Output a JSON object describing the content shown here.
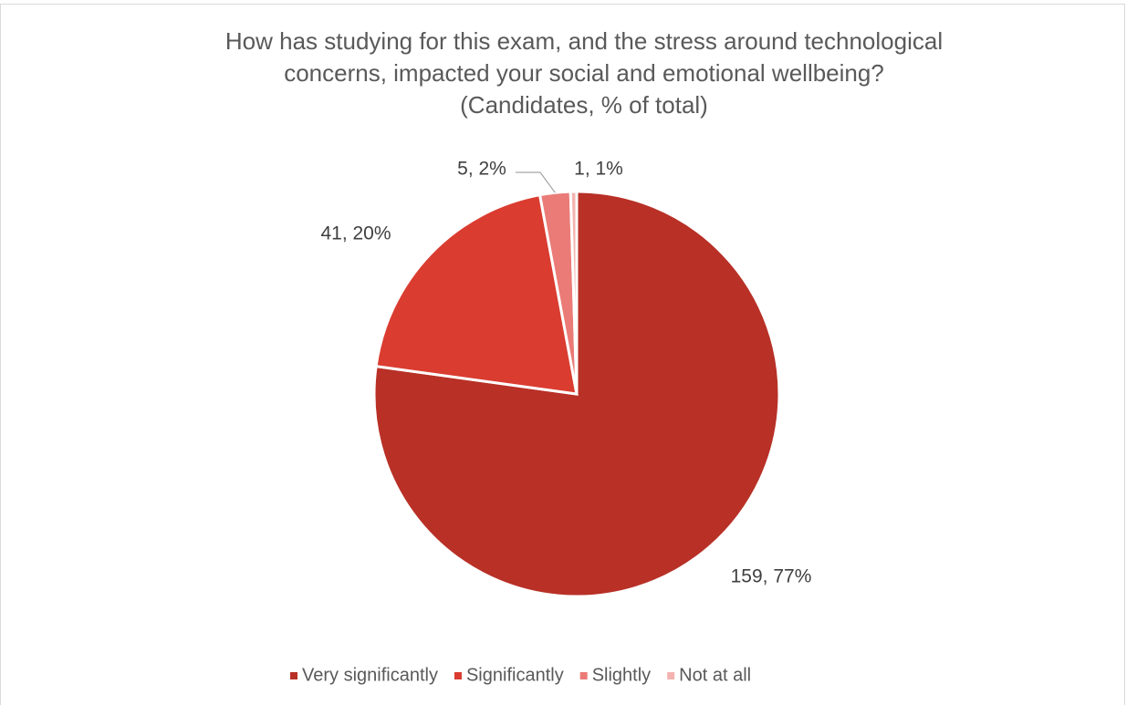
{
  "chart_data": {
    "type": "pie",
    "title_lines": [
      "How has studying for this exam, and the stress around  technological",
      "concerns, impacted your social and emotional wellbeing?",
      "(Candidates, % of total)"
    ],
    "categories": [
      "Very significantly",
      "Significantly",
      "Slightly",
      "Not at all"
    ],
    "values": [
      159,
      41,
      5,
      1
    ],
    "value_labels": [
      "159, 77%",
      "41, 20%",
      "5, 2%",
      "1, 1%"
    ],
    "colors": [
      "#b83026",
      "#da3c30",
      "#ea7b77",
      "#f4b3b0"
    ],
    "legend": "bottom"
  }
}
